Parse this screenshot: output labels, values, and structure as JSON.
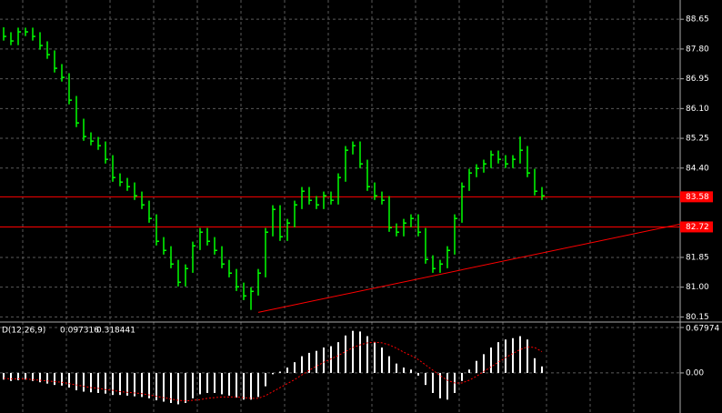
{
  "chart_data": [
    {
      "type": "hlc",
      "color": "#00ff00",
      "high": [
        88.42,
        88.28,
        88.41,
        88.41,
        88.41,
        88.28,
        88.02,
        87.76,
        87.37,
        87.11,
        86.46,
        85.81,
        85.42,
        85.29,
        85.16,
        84.77,
        84.25,
        84.12,
        83.99,
        83.73,
        83.47,
        83.08,
        82.43,
        82.17,
        81.78,
        81.65,
        82.3,
        82.69,
        82.69,
        82.43,
        82.17,
        81.78,
        81.52,
        81.13,
        81.0,
        81.52,
        82.69,
        83.34,
        83.34,
        82.95,
        83.47,
        83.86,
        83.86,
        83.6,
        83.73,
        83.73,
        84.25,
        85.03,
        85.16,
        85.16,
        84.64,
        83.99,
        83.73,
        83.6,
        82.82,
        82.95,
        83.08,
        83.08,
        82.69,
        81.91,
        81.78,
        82.17,
        83.08,
        83.99,
        84.38,
        84.51,
        84.64,
        84.9,
        84.9,
        84.77,
        84.77,
        85.3,
        85.03,
        84.38,
        83.86
      ],
      "low": [
        88.04,
        87.91,
        87.91,
        88.17,
        88.04,
        87.78,
        87.52,
        87.13,
        86.87,
        86.22,
        85.57,
        85.18,
        85.05,
        84.92,
        84.53,
        84.01,
        83.88,
        83.75,
        83.49,
        83.23,
        82.84,
        82.19,
        81.93,
        81.54,
        81.02,
        81.02,
        81.41,
        82.06,
        82.19,
        81.93,
        81.54,
        81.28,
        80.89,
        80.63,
        80.35,
        80.76,
        81.28,
        82.45,
        82.32,
        82.32,
        82.71,
        83.23,
        83.36,
        83.23,
        83.23,
        83.36,
        83.36,
        84.01,
        84.79,
        84.4,
        83.75,
        83.49,
        83.36,
        82.58,
        82.45,
        82.45,
        82.71,
        82.45,
        81.67,
        81.41,
        81.41,
        81.54,
        81.93,
        82.84,
        83.75,
        84.14,
        84.27,
        84.4,
        84.53,
        84.4,
        84.4,
        84.53,
        84.14,
        83.62,
        83.49
      ],
      "close": [
        88.16,
        88.03,
        88.29,
        88.29,
        88.16,
        87.9,
        87.64,
        87.25,
        86.99,
        86.34,
        85.69,
        85.3,
        85.17,
        85.04,
        84.65,
        84.13,
        84.0,
        83.87,
        83.61,
        83.35,
        82.96,
        82.31,
        82.05,
        81.66,
        81.14,
        81.53,
        82.18,
        82.57,
        82.31,
        82.05,
        81.66,
        81.4,
        81.01,
        80.75,
        80.88,
        81.4,
        82.57,
        83.22,
        82.44,
        82.83,
        83.35,
        83.74,
        83.48,
        83.35,
        83.61,
        83.48,
        84.13,
        84.91,
        85.04,
        84.52,
        83.87,
        83.61,
        83.48,
        82.7,
        82.57,
        82.83,
        82.96,
        82.57,
        81.79,
        81.53,
        81.66,
        82.05,
        82.96,
        83.87,
        84.26,
        84.39,
        84.52,
        84.78,
        84.65,
        84.52,
        84.65,
        84.91,
        84.26,
        83.74,
        83.61
      ],
      "xlim": [
        -0.5,
        93
      ],
      "ylim": [
        80.03,
        89.2
      ],
      "yticks": [
        88.65,
        {
          "value": 87.8,
          "label": "87.80"
        },
        86.95,
        {
          "value": 86.1,
          "label": "86.10"
        },
        85.25,
        {
          "value": 84.4,
          "label": "84.40"
        },
        81.85,
        {
          "value": 81,
          "label": "81.00"
        },
        80.15
      ],
      "grid": true,
      "hlines": [
        {
          "value": 83.58,
          "color": "#ff0000"
        },
        {
          "value": 82.72,
          "color": "#ff0000"
        }
      ],
      "trendline": {
        "x": [
          35,
          93
        ],
        "y": [
          80.28,
          82.8
        ],
        "color": "#ff0000"
      }
    },
    {
      "type": "macd",
      "label": "D(12,26,9)",
      "histogram": {
        "color": "#ffffff",
        "values": [
          -0.1,
          -0.12,
          -0.11,
          -0.1,
          -0.12,
          -0.14,
          -0.16,
          -0.18,
          -0.19,
          -0.22,
          -0.26,
          -0.28,
          -0.29,
          -0.3,
          -0.31,
          -0.33,
          -0.33,
          -0.34,
          -0.35,
          -0.36,
          -0.38,
          -0.41,
          -0.43,
          -0.45,
          -0.47,
          -0.45,
          -0.38,
          -0.32,
          -0.3,
          -0.3,
          -0.32,
          -0.34,
          -0.37,
          -0.4,
          -0.4,
          -0.36,
          -0.2,
          -0.02,
          0.02,
          0.08,
          0.16,
          0.25,
          0.3,
          0.33,
          0.38,
          0.4,
          0.46,
          0.56,
          0.63,
          0.62,
          0.55,
          0.46,
          0.38,
          0.25,
          0.14,
          0.08,
          0.05,
          -0.04,
          -0.18,
          -0.3,
          -0.38,
          -0.4,
          -0.3,
          -0.12,
          0.05,
          0.18,
          0.28,
          0.38,
          0.46,
          0.5,
          0.52,
          0.55,
          0.5,
          0.22,
          0.097316
        ]
      },
      "signal": {
        "color": "#ff0000",
        "values": [
          -0.08,
          -0.09,
          -0.09,
          -0.09,
          -0.1,
          -0.11,
          -0.12,
          -0.13,
          -0.14,
          -0.16,
          -0.18,
          -0.2,
          -0.22,
          -0.23,
          -0.25,
          -0.26,
          -0.28,
          -0.29,
          -0.3,
          -0.31,
          -0.33,
          -0.35,
          -0.37,
          -0.39,
          -0.41,
          -0.42,
          -0.41,
          -0.4,
          -0.38,
          -0.37,
          -0.36,
          -0.36,
          -0.36,
          -0.37,
          -0.38,
          -0.38,
          -0.34,
          -0.28,
          -0.22,
          -0.16,
          -0.1,
          -0.03,
          0.04,
          0.1,
          0.16,
          0.21,
          0.26,
          0.32,
          0.38,
          0.42,
          0.45,
          0.46,
          0.45,
          0.42,
          0.37,
          0.31,
          0.26,
          0.2,
          0.12,
          0.04,
          -0.04,
          -0.11,
          -0.15,
          -0.15,
          -0.11,
          -0.05,
          0.02,
          0.09,
          0.16,
          0.23,
          0.29,
          0.35,
          0.39,
          0.38,
          0.318441
        ]
      },
      "xlim": [
        -0.5,
        93
      ],
      "ylim": [
        -0.6,
        0.748
      ],
      "yticks": [
        0.67974,
        {
          "value": 0,
          "label": "0.00"
        }
      ],
      "grid": true
    }
  ]
}
